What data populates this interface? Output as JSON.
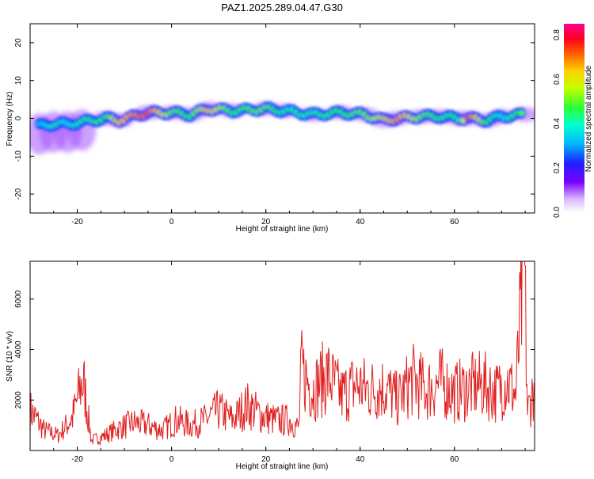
{
  "figure": {
    "title": "PAZ1.2025.289.04.47.G30"
  },
  "chart_data": [
    {
      "type": "heatmap",
      "panel": "spectrogram",
      "xlabel": "Height of straight line (km)",
      "ylabel": "Frequency (Hz)",
      "xlim": [
        -30,
        77
      ],
      "ylim": [
        -25,
        25
      ],
      "xticks": [
        -20,
        0,
        20,
        40,
        60
      ],
      "yticks": [
        -20,
        -10,
        0,
        10,
        20
      ],
      "colorbar": {
        "label": "Normalized spectral amplitude",
        "range": [
          0,
          0.85
        ],
        "ticks": [
          "0.0",
          "0.2",
          "0.4",
          "0.6",
          "0.8"
        ],
        "colormap": "rainbow (white to purple to blue to cyan to green to yellow to red to magenta)"
      },
      "ridge": {
        "description": "Dominant frequency ridge near 0 Hz across height; broad diffuse spread at low heights",
        "points": [
          {
            "x": -28,
            "freq": -2,
            "amp": 0.35
          },
          {
            "x": -25,
            "freq": -1.5,
            "amp": 0.45
          },
          {
            "x": -22,
            "freq": -1.5,
            "amp": 0.4
          },
          {
            "x": -19,
            "freq": -1,
            "amp": 0.45
          },
          {
            "x": -14,
            "freq": 0,
            "amp": 0.5
          },
          {
            "x": -11,
            "freq": -0.5,
            "amp": 0.7
          },
          {
            "x": -5,
            "freq": 1.5,
            "amp": 0.8
          },
          {
            "x": 0,
            "freq": 1.5,
            "amp": 0.55
          },
          {
            "x": 4,
            "freq": 1,
            "amp": 0.5
          },
          {
            "x": 8,
            "freq": 2.5,
            "amp": 0.7
          },
          {
            "x": 13,
            "freq": 2,
            "amp": 0.5
          },
          {
            "x": 20,
            "freq": 2.5,
            "amp": 0.55
          },
          {
            "x": 24,
            "freq": 2,
            "amp": 0.45
          },
          {
            "x": 30,
            "freq": 1,
            "amp": 0.45
          },
          {
            "x": 36,
            "freq": 1.5,
            "amp": 0.5
          },
          {
            "x": 41,
            "freq": 1,
            "amp": 0.55
          },
          {
            "x": 45,
            "freq": -0.5,
            "amp": 0.65
          },
          {
            "x": 48,
            "freq": 0,
            "amp": 0.75
          },
          {
            "x": 53,
            "freq": 0.5,
            "amp": 0.55
          },
          {
            "x": 57,
            "freq": 0.5,
            "amp": 0.5
          },
          {
            "x": 61,
            "freq": 0,
            "amp": 0.45
          },
          {
            "x": 63,
            "freq": 0,
            "amp": 0.8
          },
          {
            "x": 67,
            "freq": -0.5,
            "amp": 0.5
          },
          {
            "x": 70,
            "freq": 0.5,
            "amp": 0.4
          },
          {
            "x": 75,
            "freq": 1,
            "amp": 0.55
          }
        ]
      }
    },
    {
      "type": "line",
      "panel": "snr",
      "xlabel": "Height of straight line (km)",
      "ylabel": "SNR (10 * v/v)",
      "xlim": [
        -30,
        77
      ],
      "ylim": [
        0,
        7500
      ],
      "xticks": [
        -20,
        0,
        20,
        40,
        60
      ],
      "yticks": [
        2000,
        4000,
        6000
      ],
      "series": [
        {
          "color": "#e02020",
          "x": [
            -30,
            -27,
            -24,
            -21,
            -19,
            -18.5,
            -17,
            -14,
            -11,
            -8,
            -5,
            -2,
            1,
            4,
            7,
            10,
            13,
            16,
            19,
            22,
            25,
            27,
            27.5,
            30,
            33,
            36,
            39,
            42,
            45,
            48,
            51,
            54,
            57,
            60,
            63,
            66,
            69,
            71,
            73,
            74.8,
            75.5,
            77
          ],
          "values": [
            1600,
            800,
            600,
            1300,
            2700,
            2500,
            400,
            600,
            900,
            1100,
            1000,
            800,
            1200,
            1000,
            1200,
            1600,
            1200,
            1800,
            1400,
            1200,
            1200,
            900,
            3200,
            2400,
            3000,
            2200,
            2600,
            2400,
            2500,
            2000,
            2800,
            2400,
            2700,
            2300,
            2500,
            2600,
            2300,
            2800,
            2200,
            7500,
            1500,
            2600
          ]
        }
      ]
    }
  ]
}
